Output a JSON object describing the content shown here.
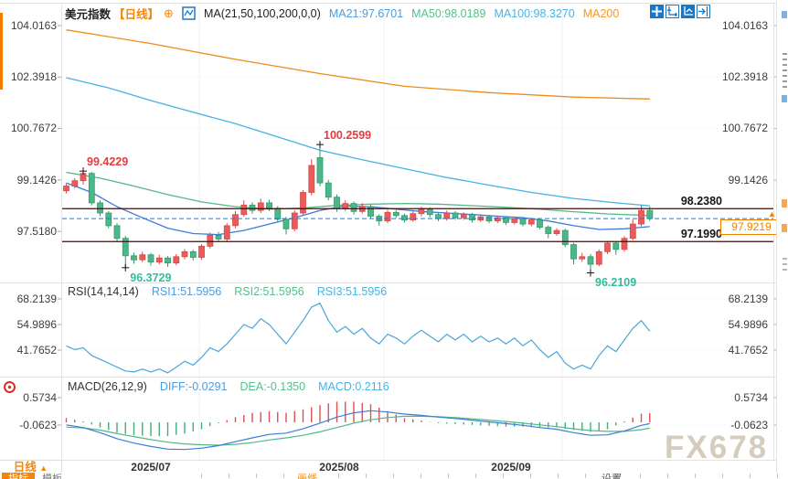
{
  "header": {
    "title": "美元指数",
    "period": "【日线】",
    "plus_icon": "⊕",
    "ma_settings": "MA(21,50,100,200,0,0)",
    "ma21": "MA21:97.6701",
    "ma50": "MA50:98.0189",
    "ma100": "MA100:98.3270",
    "ma200": "MA200"
  },
  "rsi_header": {
    "params": "RSI(14,14,14)",
    "rsi1": "RSI1:51.5956",
    "rsi2": "RSI2:51.5956",
    "rsi3": "RSI3:51.5956"
  },
  "macd_header": {
    "params": "MACD(26,12,9)",
    "diff": "DIFF:-0.0291",
    "dea": "DEA:-0.1350",
    "macd": "MACD:0.2116"
  },
  "axes": {
    "main_left": [
      "104.0163",
      "102.3918",
      "100.7672",
      "99.1426",
      "97.5180"
    ],
    "main_right": [
      "104.0163",
      "102.3918",
      "100.7672",
      "99.1426"
    ],
    "rsi_left": [
      "68.2139",
      "54.9896",
      "41.7652"
    ],
    "rsi_right": [
      "68.2139",
      "54.9896",
      "41.7652"
    ],
    "macd_left": [
      "0.5734",
      "-0.0623"
    ],
    "macd_right": [
      "0.5734",
      "-0.0623"
    ]
  },
  "levels_labels": {
    "resistance": "98.2380",
    "support": "97.1990",
    "current": "97.9219",
    "current_arrow": "▲"
  },
  "footer": {
    "period": "日线",
    "period_arrow": "▲",
    "tabs": [
      "指标",
      "模板",
      "画线",
      "设置"
    ]
  },
  "watermark": "FX678",
  "chart_data": {
    "type": "candlestick+indicators",
    "title": "美元指数 日线",
    "x_axis": {
      "labels": [
        "2025/07",
        "2025/08",
        "2025/09"
      ]
    },
    "grid": {
      "main": [
        104.0163,
        102.3918,
        100.7672,
        99.1426,
        97.518
      ],
      "rsi": [
        68.2139,
        54.9896,
        41.7652
      ],
      "macd": [
        0.5734,
        -0.0623
      ]
    },
    "levels": {
      "resistance": 98.238,
      "support": 97.199,
      "current": 97.9219
    },
    "annotations": [
      {
        "text": "99.4229",
        "i": 2,
        "v": 99.4229,
        "kind": "high"
      },
      {
        "text": "100.2599",
        "i": 30,
        "v": 100.2599,
        "kind": "high"
      },
      {
        "text": "96.3729",
        "i": 7,
        "v": 96.3729,
        "kind": "low"
      },
      {
        "text": "96.2109",
        "i": 62,
        "v": 96.2109,
        "kind": "low"
      }
    ],
    "candles": [
      [
        98.8,
        99.03,
        98.72,
        98.95
      ],
      [
        98.95,
        99.2,
        98.88,
        99.12
      ],
      [
        99.12,
        99.4229,
        99.0,
        99.35
      ],
      [
        99.35,
        99.4,
        98.34,
        98.42
      ],
      [
        98.42,
        98.5,
        98.0,
        98.1
      ],
      [
        98.1,
        98.16,
        97.62,
        97.7
      ],
      [
        97.7,
        97.78,
        97.22,
        97.3
      ],
      [
        97.3,
        97.38,
        96.3729,
        96.75
      ],
      [
        96.75,
        96.85,
        96.5,
        96.62
      ],
      [
        96.62,
        96.88,
        96.55,
        96.78
      ],
      [
        96.78,
        96.84,
        96.44,
        96.55
      ],
      [
        96.55,
        96.78,
        96.48,
        96.68
      ],
      [
        96.68,
        96.74,
        96.4,
        96.52
      ],
      [
        96.52,
        96.8,
        96.45,
        96.72
      ],
      [
        96.72,
        96.96,
        96.64,
        96.88
      ],
      [
        96.88,
        96.94,
        96.6,
        96.7
      ],
      [
        96.7,
        97.12,
        96.62,
        97.05
      ],
      [
        97.05,
        97.48,
        96.98,
        97.4
      ],
      [
        97.4,
        97.5,
        97.18,
        97.28
      ],
      [
        97.28,
        97.78,
        97.2,
        97.7
      ],
      [
        97.7,
        98.16,
        97.62,
        98.05
      ],
      [
        98.05,
        98.5,
        97.98,
        98.35
      ],
      [
        98.35,
        98.44,
        98.08,
        98.18
      ],
      [
        98.18,
        98.55,
        98.1,
        98.42
      ],
      [
        98.42,
        98.52,
        98.16,
        98.25
      ],
      [
        98.25,
        98.32,
        97.8,
        97.9
      ],
      [
        97.9,
        97.98,
        97.42,
        97.6
      ],
      [
        97.6,
        98.18,
        97.52,
        98.1
      ],
      [
        98.1,
        98.82,
        98.02,
        98.75
      ],
      [
        98.75,
        99.8,
        98.66,
        99.6
      ],
      [
        99.85,
        100.2599,
        98.95,
        99.05
      ],
      [
        99.05,
        99.15,
        98.5,
        98.6
      ],
      [
        98.6,
        98.68,
        98.14,
        98.25
      ],
      [
        98.25,
        98.5,
        98.16,
        98.4
      ],
      [
        98.4,
        98.46,
        98.05,
        98.15
      ],
      [
        98.15,
        98.42,
        98.08,
        98.3
      ],
      [
        98.3,
        98.36,
        97.92,
        98.0
      ],
      [
        98.0,
        98.06,
        97.7,
        97.85
      ],
      [
        97.85,
        98.2,
        97.78,
        98.12
      ],
      [
        98.12,
        98.18,
        97.94,
        98.02
      ],
      [
        98.02,
        98.08,
        97.8,
        97.88
      ],
      [
        97.88,
        98.16,
        97.82,
        98.08
      ],
      [
        98.08,
        98.3,
        98.0,
        98.22
      ],
      [
        98.22,
        98.28,
        97.96,
        98.05
      ],
      [
        98.05,
        98.12,
        97.84,
        97.92
      ],
      [
        97.92,
        98.18,
        97.86,
        98.1
      ],
      [
        98.1,
        98.16,
        97.88,
        97.95
      ],
      [
        97.95,
        98.12,
        97.88,
        98.05
      ],
      [
        98.05,
        98.1,
        97.8,
        97.88
      ],
      [
        97.88,
        98.06,
        97.82,
        97.98
      ],
      [
        97.98,
        98.04,
        97.78,
        97.85
      ],
      [
        97.85,
        98.02,
        97.78,
        97.95
      ],
      [
        97.95,
        98.0,
        97.72,
        97.8
      ],
      [
        97.8,
        97.99,
        97.74,
        97.92
      ],
      [
        97.92,
        97.98,
        97.68,
        97.75
      ],
      [
        97.75,
        97.95,
        97.68,
        97.88
      ],
      [
        97.88,
        97.93,
        97.58,
        97.65
      ],
      [
        97.65,
        97.71,
        97.3,
        97.45
      ],
      [
        97.45,
        97.62,
        97.38,
        97.55
      ],
      [
        97.55,
        97.6,
        97.02,
        97.1
      ],
      [
        97.1,
        97.16,
        96.48,
        96.65
      ],
      [
        96.65,
        96.84,
        96.56,
        96.72
      ],
      [
        96.72,
        96.8,
        96.2109,
        96.48
      ],
      [
        96.48,
        96.95,
        96.42,
        96.88
      ],
      [
        96.88,
        97.22,
        96.8,
        97.15
      ],
      [
        97.15,
        97.21,
        96.78,
        96.95
      ],
      [
        96.95,
        97.37,
        96.88,
        97.3
      ],
      [
        97.3,
        97.9,
        97.24,
        97.75
      ],
      [
        97.75,
        98.35,
        97.68,
        98.18
      ],
      [
        98.18,
        98.3,
        97.85,
        97.9219
      ]
    ],
    "ma": [
      {
        "name": "MA200",
        "color": "#ef8b1b",
        "points": [
          [
            0,
            103.88
          ],
          [
            10,
            103.45
          ],
          [
            20,
            102.95
          ],
          [
            30,
            102.5
          ],
          [
            40,
            102.1
          ],
          [
            50,
            101.9
          ],
          [
            60,
            101.76
          ],
          [
            69,
            101.7
          ]
        ]
      },
      {
        "name": "MA100",
        "color": "#47b0e4",
        "points": [
          [
            0,
            102.37
          ],
          [
            5,
            102.05
          ],
          [
            10,
            101.65
          ],
          [
            15,
            101.28
          ],
          [
            20,
            100.92
          ],
          [
            25,
            100.5
          ],
          [
            30,
            100.08
          ],
          [
            35,
            99.78
          ],
          [
            40,
            99.5
          ],
          [
            45,
            99.22
          ],
          [
            50,
            98.98
          ],
          [
            55,
            98.75
          ],
          [
            60,
            98.56
          ],
          [
            65,
            98.42
          ],
          [
            69,
            98.327
          ]
        ]
      },
      {
        "name": "MA50",
        "color": "#53b987",
        "points": [
          [
            0,
            99.38
          ],
          [
            4,
            99.2
          ],
          [
            8,
            98.95
          ],
          [
            12,
            98.68
          ],
          [
            16,
            98.45
          ],
          [
            20,
            98.3
          ],
          [
            24,
            98.22
          ],
          [
            28,
            98.26
          ],
          [
            32,
            98.34
          ],
          [
            36,
            98.38
          ],
          [
            40,
            98.4
          ],
          [
            44,
            98.38
          ],
          [
            48,
            98.33
          ],
          [
            52,
            98.28
          ],
          [
            56,
            98.22
          ],
          [
            60,
            98.14
          ],
          [
            64,
            98.07
          ],
          [
            69,
            98.0189
          ]
        ]
      },
      {
        "name": "MA21",
        "color": "#3b7dd8",
        "points": [
          [
            0,
            99.05
          ],
          [
            3,
            98.75
          ],
          [
            6,
            98.3
          ],
          [
            9,
            97.95
          ],
          [
            12,
            97.62
          ],
          [
            15,
            97.45
          ],
          [
            18,
            97.42
          ],
          [
            21,
            97.55
          ],
          [
            24,
            97.75
          ],
          [
            27,
            97.95
          ],
          [
            30,
            98.18
          ],
          [
            33,
            98.32
          ],
          [
            36,
            98.3
          ],
          [
            39,
            98.22
          ],
          [
            42,
            98.15
          ],
          [
            45,
            98.1
          ],
          [
            48,
            98.05
          ],
          [
            51,
            98.0
          ],
          [
            54,
            97.95
          ],
          [
            57,
            97.85
          ],
          [
            60,
            97.7
          ],
          [
            63,
            97.58
          ],
          [
            66,
            97.6
          ],
          [
            69,
            97.6701
          ]
        ]
      }
    ],
    "rsi": {
      "color": "#4ba6d9",
      "current": 51.5956,
      "values": [
        44,
        42,
        43,
        39,
        37,
        35,
        33,
        31,
        30.5,
        32,
        30.5,
        32,
        30,
        33,
        36,
        34,
        38,
        43,
        41,
        45,
        50,
        55,
        53,
        58,
        55,
        50,
        45,
        51,
        57,
        64,
        66,
        57,
        51,
        54,
        50,
        53,
        48,
        45,
        50,
        48,
        45,
        49,
        52,
        49,
        46,
        50,
        47,
        50,
        46,
        49,
        46,
        48,
        45,
        48,
        44,
        47,
        42,
        38,
        41,
        35,
        32,
        34,
        32,
        39,
        44,
        41,
        47,
        53,
        57,
        51.6
      ]
    },
    "macd": {
      "diff": {
        "color": "#3b7dd8",
        "current": -0.0291,
        "points": [
          [
            0,
            -0.06
          ],
          [
            2,
            -0.12
          ],
          [
            4,
            -0.24
          ],
          [
            6,
            -0.38
          ],
          [
            8,
            -0.48
          ],
          [
            10,
            -0.56
          ],
          [
            12,
            -0.62
          ],
          [
            14,
            -0.63
          ],
          [
            16,
            -0.6
          ],
          [
            18,
            -0.54
          ],
          [
            20,
            -0.45
          ],
          [
            22,
            -0.36
          ],
          [
            24,
            -0.28
          ],
          [
            26,
            -0.25
          ],
          [
            28,
            -0.15
          ],
          [
            30,
            -0.02
          ],
          [
            32,
            0.12
          ],
          [
            34,
            0.22
          ],
          [
            36,
            0.27
          ],
          [
            38,
            0.24
          ],
          [
            40,
            0.19
          ],
          [
            42,
            0.16
          ],
          [
            44,
            0.12
          ],
          [
            46,
            0.09
          ],
          [
            48,
            0.05
          ],
          [
            50,
            0.01
          ],
          [
            52,
            -0.03
          ],
          [
            54,
            -0.07
          ],
          [
            56,
            -0.12
          ],
          [
            58,
            -0.16
          ],
          [
            60,
            -0.24
          ],
          [
            62,
            -0.3
          ],
          [
            64,
            -0.29
          ],
          [
            66,
            -0.2
          ],
          [
            68,
            -0.07
          ],
          [
            69,
            -0.0291
          ]
        ]
      },
      "dea": {
        "color": "#52b986",
        "current": -0.135,
        "points": [
          [
            0,
            -0.11
          ],
          [
            2,
            -0.13
          ],
          [
            4,
            -0.18
          ],
          [
            6,
            -0.26
          ],
          [
            8,
            -0.33
          ],
          [
            10,
            -0.4
          ],
          [
            12,
            -0.46
          ],
          [
            14,
            -0.5
          ],
          [
            16,
            -0.52
          ],
          [
            18,
            -0.53
          ],
          [
            20,
            -0.51
          ],
          [
            22,
            -0.47
          ],
          [
            24,
            -0.41
          ],
          [
            26,
            -0.36
          ],
          [
            28,
            -0.3
          ],
          [
            30,
            -0.22
          ],
          [
            32,
            -0.12
          ],
          [
            34,
            -0.02
          ],
          [
            36,
            0.06
          ],
          [
            38,
            0.11
          ],
          [
            40,
            0.14
          ],
          [
            42,
            0.14
          ],
          [
            44,
            0.13
          ],
          [
            46,
            0.11
          ],
          [
            48,
            0.08
          ],
          [
            50,
            0.05
          ],
          [
            52,
            0.02
          ],
          [
            54,
            -0.02
          ],
          [
            56,
            -0.06
          ],
          [
            58,
            -0.1
          ],
          [
            60,
            -0.15
          ],
          [
            62,
            -0.19
          ],
          [
            64,
            -0.21
          ],
          [
            66,
            -0.21
          ],
          [
            68,
            -0.17
          ],
          [
            69,
            -0.135
          ]
        ]
      },
      "hist_current": 0.2116,
      "up_color": "#e0504e",
      "down_color": "#3fae7e"
    }
  }
}
